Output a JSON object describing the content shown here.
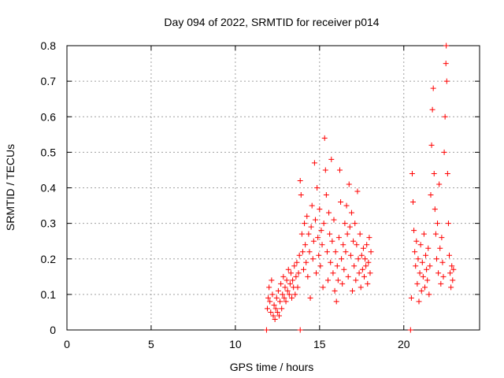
{
  "chart_data": {
    "type": "scatter",
    "title": "Day 094 of 2022, SRMTID for receiver p014",
    "xlabel": "GPS time / hours",
    "ylabel": "SRMTID / TECUs",
    "xlim": [
      0,
      24.5
    ],
    "ylim": [
      0,
      0.8
    ],
    "xticks": [
      0,
      5,
      10,
      15,
      20
    ],
    "xtick_labels": [
      "0",
      "5",
      "10",
      "15",
      "20"
    ],
    "yticks": [
      0,
      0.1,
      0.2,
      0.3,
      0.4,
      0.5,
      0.6,
      0.7,
      0.8
    ],
    "ytick_labels": [
      "0",
      "0.1",
      "0.2",
      "0.3",
      "0.4",
      "0.5",
      "0.6",
      "0.7",
      "0.8"
    ],
    "grid": true,
    "marker": "plus",
    "colors": {
      "series": "#ff0000",
      "axis": "#000000",
      "grid": "#a0a0a0"
    },
    "series": [
      {
        "name": "SRMTID",
        "points": [
          [
            11.85,
            0.0
          ],
          [
            11.9,
            0.06
          ],
          [
            11.95,
            0.09
          ],
          [
            12.0,
            0.12
          ],
          [
            12.05,
            0.08
          ],
          [
            12.1,
            0.05
          ],
          [
            12.15,
            0.14
          ],
          [
            12.2,
            0.1
          ],
          [
            12.25,
            0.04
          ],
          [
            12.3,
            0.07
          ],
          [
            12.35,
            0.03
          ],
          [
            12.4,
            0.06
          ],
          [
            12.45,
            0.09
          ],
          [
            12.5,
            0.05
          ],
          [
            12.55,
            0.11
          ],
          [
            12.6,
            0.04
          ],
          [
            12.65,
            0.08
          ],
          [
            12.7,
            0.13
          ],
          [
            12.75,
            0.06
          ],
          [
            12.8,
            0.1
          ],
          [
            12.85,
            0.15
          ],
          [
            12.9,
            0.09
          ],
          [
            12.95,
            0.12
          ],
          [
            13.0,
            0.08
          ],
          [
            13.05,
            0.14
          ],
          [
            13.1,
            0.11
          ],
          [
            13.15,
            0.17
          ],
          [
            13.2,
            0.1
          ],
          [
            13.25,
            0.13
          ],
          [
            13.3,
            0.16
          ],
          [
            13.35,
            0.09
          ],
          [
            13.4,
            0.14
          ],
          [
            13.45,
            0.12
          ],
          [
            13.5,
            0.18
          ],
          [
            13.55,
            0.1
          ],
          [
            13.6,
            0.15
          ],
          [
            13.65,
            0.19
          ],
          [
            13.7,
            0.12
          ],
          [
            13.75,
            0.16
          ],
          [
            13.8,
            0.21
          ],
          [
            13.85,
            0.0
          ],
          [
            13.85,
            0.42
          ],
          [
            13.9,
            0.38
          ],
          [
            13.95,
            0.27
          ],
          [
            14.0,
            0.22
          ],
          [
            14.05,
            0.17
          ],
          [
            14.1,
            0.3
          ],
          [
            14.15,
            0.24
          ],
          [
            14.2,
            0.19
          ],
          [
            14.25,
            0.32
          ],
          [
            14.3,
            0.15
          ],
          [
            14.35,
            0.27
          ],
          [
            14.4,
            0.22
          ],
          [
            14.45,
            0.09
          ],
          [
            14.5,
            0.29
          ],
          [
            14.55,
            0.35
          ],
          [
            14.6,
            0.2
          ],
          [
            14.65,
            0.25
          ],
          [
            14.7,
            0.47
          ],
          [
            14.75,
            0.31
          ],
          [
            14.8,
            0.16
          ],
          [
            14.85,
            0.4
          ],
          [
            14.9,
            0.26
          ],
          [
            14.95,
            0.21
          ],
          [
            15.0,
            0.34
          ],
          [
            15.05,
            0.18
          ],
          [
            15.1,
            0.28
          ],
          [
            15.15,
            0.24
          ],
          [
            15.2,
            0.12
          ],
          [
            15.25,
            0.3
          ],
          [
            15.3,
            0.54
          ],
          [
            15.35,
            0.45
          ],
          [
            15.4,
            0.38
          ],
          [
            15.45,
            0.22
          ],
          [
            15.5,
            0.14
          ],
          [
            15.55,
            0.33
          ],
          [
            15.6,
            0.27
          ],
          [
            15.65,
            0.19
          ],
          [
            15.7,
            0.48
          ],
          [
            15.75,
            0.25
          ],
          [
            15.8,
            0.16
          ],
          [
            15.85,
            0.31
          ],
          [
            15.9,
            0.11
          ],
          [
            15.95,
            0.22
          ],
          [
            16.0,
            0.08
          ],
          [
            16.05,
            0.18
          ],
          [
            16.1,
            0.14
          ],
          [
            16.15,
            0.26
          ],
          [
            16.2,
            0.45
          ],
          [
            16.25,
            0.36
          ],
          [
            16.3,
            0.2
          ],
          [
            16.35,
            0.13
          ],
          [
            16.4,
            0.24
          ],
          [
            16.45,
            0.17
          ],
          [
            16.5,
            0.3
          ],
          [
            16.55,
            0.22
          ],
          [
            16.6,
            0.35
          ],
          [
            16.65,
            0.27
          ],
          [
            16.7,
            0.15
          ],
          [
            16.75,
            0.41
          ],
          [
            16.8,
            0.29
          ],
          [
            16.85,
            0.21
          ],
          [
            16.9,
            0.33
          ],
          [
            16.95,
            0.11
          ],
          [
            17.0,
            0.25
          ],
          [
            17.05,
            0.18
          ],
          [
            17.1,
            0.3
          ],
          [
            17.15,
            0.14
          ],
          [
            17.2,
            0.24
          ],
          [
            17.25,
            0.39
          ],
          [
            17.3,
            0.2
          ],
          [
            17.35,
            0.16
          ],
          [
            17.4,
            0.27
          ],
          [
            17.45,
            0.12
          ],
          [
            17.5,
            0.21
          ],
          [
            17.55,
            0.17
          ],
          [
            17.6,
            0.23
          ],
          [
            17.65,
            0.15
          ],
          [
            17.7,
            0.2
          ],
          [
            17.75,
            0.18
          ],
          [
            17.8,
            0.24
          ],
          [
            17.85,
            0.13
          ],
          [
            17.9,
            0.19
          ],
          [
            17.95,
            0.26
          ],
          [
            18.0,
            0.16
          ],
          [
            18.05,
            0.22
          ],
          [
            20.4,
            0.0
          ],
          [
            20.45,
            0.09
          ],
          [
            20.5,
            0.44
          ],
          [
            20.55,
            0.36
          ],
          [
            20.6,
            0.28
          ],
          [
            20.65,
            0.22
          ],
          [
            20.7,
            0.18
          ],
          [
            20.75,
            0.25
          ],
          [
            20.8,
            0.13
          ],
          [
            20.85,
            0.2
          ],
          [
            20.9,
            0.08
          ],
          [
            20.95,
            0.16
          ],
          [
            21.0,
            0.24
          ],
          [
            21.05,
            0.11
          ],
          [
            21.1,
            0.19
          ],
          [
            21.15,
            0.15
          ],
          [
            21.2,
            0.27
          ],
          [
            21.25,
            0.12
          ],
          [
            21.3,
            0.21
          ],
          [
            21.35,
            0.17
          ],
          [
            21.4,
            0.14
          ],
          [
            21.45,
            0.23
          ],
          [
            21.5,
            0.1
          ],
          [
            21.55,
            0.18
          ],
          [
            21.6,
            0.38
          ],
          [
            21.65,
            0.52
          ],
          [
            21.7,
            0.62
          ],
          [
            21.75,
            0.68
          ],
          [
            21.8,
            0.44
          ],
          [
            21.85,
            0.34
          ],
          [
            21.9,
            0.27
          ],
          [
            21.95,
            0.2
          ],
          [
            22.0,
            0.3
          ],
          [
            22.05,
            0.16
          ],
          [
            22.1,
            0.41
          ],
          [
            22.15,
            0.23
          ],
          [
            22.2,
            0.13
          ],
          [
            22.25,
            0.26
          ],
          [
            22.3,
            0.19
          ],
          [
            22.35,
            0.15
          ],
          [
            22.4,
            0.5
          ],
          [
            22.45,
            0.6
          ],
          [
            22.5,
            0.75
          ],
          [
            22.52,
            0.8
          ],
          [
            22.55,
            0.7
          ],
          [
            22.6,
            0.44
          ],
          [
            22.65,
            0.3
          ],
          [
            22.7,
            0.21
          ],
          [
            22.75,
            0.16
          ],
          [
            22.8,
            0.12
          ],
          [
            22.85,
            0.18
          ],
          [
            22.9,
            0.14
          ],
          [
            22.95,
            0.17
          ]
        ]
      }
    ]
  }
}
